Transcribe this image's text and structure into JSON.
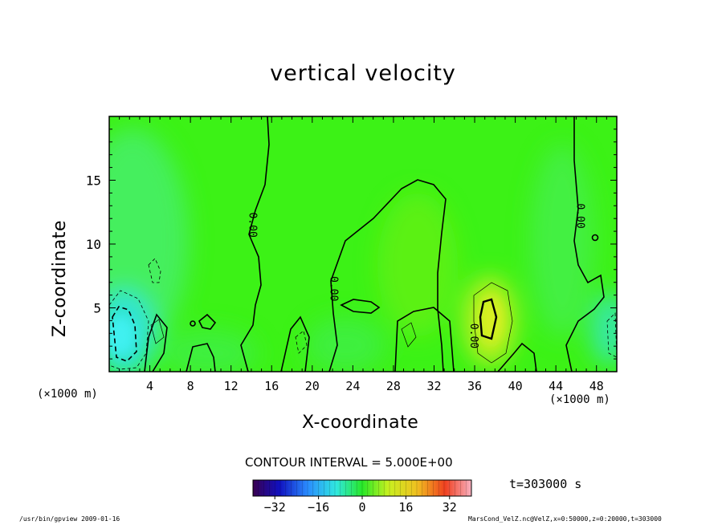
{
  "chart_data": {
    "type": "heatmap",
    "title": "vertical velocity",
    "xlabel": "X-coordinate",
    "ylabel": "Z-coordinate",
    "x_unit_label": "(×1000 m)",
    "xlim": [
      0,
      50
    ],
    "ylim": [
      0,
      20
    ],
    "xticks": [
      4,
      8,
      12,
      16,
      20,
      24,
      28,
      32,
      36,
      40,
      44,
      48
    ],
    "yticks": [
      5,
      10,
      15
    ],
    "contour_labels": [
      {
        "text": "0.00",
        "x": 13.8,
        "z": 11.5
      },
      {
        "text": "0.00",
        "x": 21.8,
        "z": 6.5
      },
      {
        "text": "0.00",
        "x": 35.6,
        "z": 2.8
      },
      {
        "text": "0.00",
        "x": 46.1,
        "z": 12.2
      }
    ],
    "colorbar": {
      "min": -40,
      "max": 40,
      "ticks": [
        -32,
        -16,
        0,
        16,
        32
      ]
    },
    "contour_interval": "CONTOUR INTERVAL = 5.000E+00",
    "time_label": "t=303000 s"
  },
  "colors": {
    "background_field": "#3cf216",
    "updraft_yellow": "#c8f020",
    "downdraft_cyan": "#36ecd8"
  },
  "footer": {
    "left": "/usr/bin/gpview  2009-01-16",
    "right": "MarsCond_VelZ.nc@VelZ,x=0:50000,z=0:20000,t=303000"
  }
}
